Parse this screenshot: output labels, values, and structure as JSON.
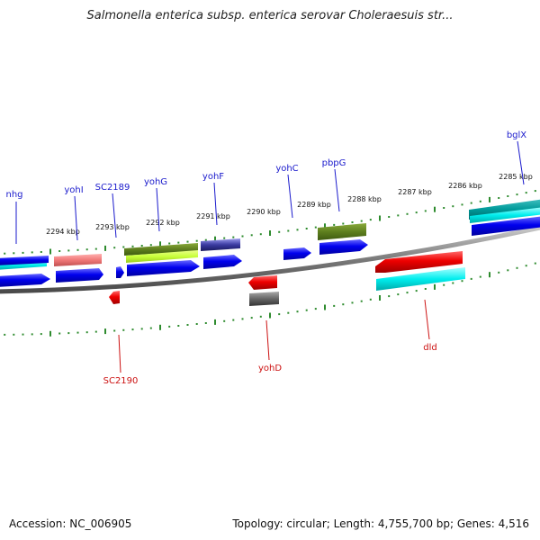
{
  "title": "Salmonella enterica subsp. enterica serovar Choleraesuis str...",
  "footer": {
    "accession": "Accession: NC_006905",
    "summary": "Topology: circular; Length: 4,755,700 bp; Genes: 4,516"
  },
  "colors": {
    "backbone": "#808080",
    "tick": "#2e8b2e",
    "label_top": "#1a1acc",
    "label_bottom": "#cc1111"
  },
  "scale_labels": [
    "2294 kbp",
    "2293 kbp",
    "2292 kbp",
    "2291 kbp",
    "2290 kbp",
    "2289 kbp",
    "2288 kbp",
    "2287 kbp",
    "2286 kbp",
    "2285 kbp"
  ],
  "gene_labels_top": [
    "nhg",
    "yohI",
    "SC2189",
    "yohG",
    "yohF",
    "yohC",
    "pbpG",
    "bglX"
  ],
  "gene_labels_bottom": [
    "SC2190",
    "yohD",
    "dld"
  ]
}
